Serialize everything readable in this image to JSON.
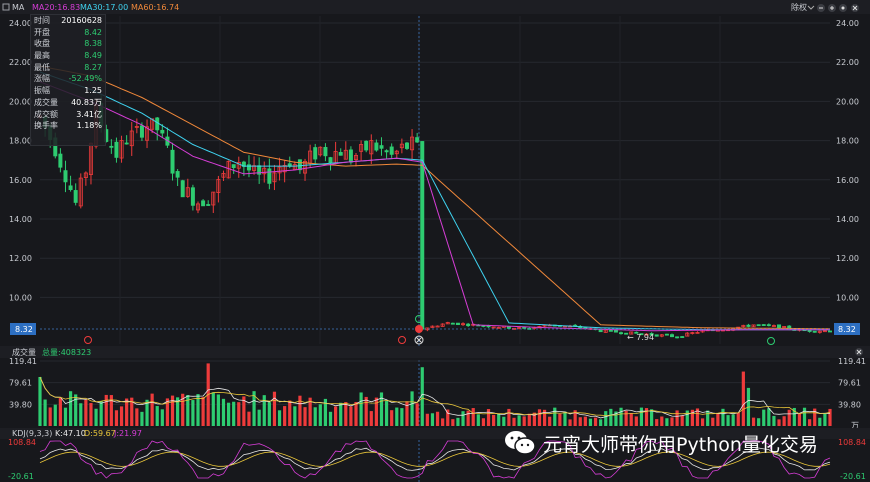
{
  "header": {
    "indicator": "MA",
    "legend": [
      {
        "label": "MA20:16.83",
        "color": "#d63dd6"
      },
      {
        "label": "MA30:17.00",
        "color": "#3fd3f0"
      },
      {
        "label": "MA60:16.74",
        "color": "#f0883a"
      }
    ],
    "adjust_label": "除权"
  },
  "price_axis": {
    "min": 8.32,
    "max": 24.0,
    "ticks": [
      "24.00",
      "22.00",
      "20.00",
      "18.00",
      "16.00",
      "14.00",
      "12.00",
      "10.00"
    ],
    "current": "8.32"
  },
  "tooltip": [
    {
      "k": "时间",
      "v": "20160628",
      "tone": "white"
    },
    {
      "k": "开盘",
      "v": "8.42",
      "tone": "green"
    },
    {
      "k": "收盘",
      "v": "8.38",
      "tone": "green"
    },
    {
      "k": "最高",
      "v": "8.49",
      "tone": "green"
    },
    {
      "k": "最低",
      "v": "8.27",
      "tone": "green"
    },
    {
      "k": "涨幅",
      "v": "-52.49%",
      "tone": "green"
    },
    {
      "k": "振幅",
      "v": "1.25",
      "tone": "white"
    },
    {
      "k": "成交量",
      "v": "40.83万",
      "tone": "white"
    },
    {
      "k": "成交额",
      "v": "3.41亿",
      "tone": "white"
    },
    {
      "k": "换手率",
      "v": "1.18%",
      "tone": "white"
    }
  ],
  "annotations": {
    "low_marker": "← 7.94"
  },
  "volume_panel": {
    "title": "成交量",
    "total_label": "总量:408323",
    "ticks": [
      "119.41",
      "79.61",
      "39.80"
    ],
    "unit": "万"
  },
  "kdj_panel": {
    "title": "KDJ(9,3,3)",
    "k": {
      "label": "K:47.10",
      "color": "#e8e8e8"
    },
    "d": {
      "label": "D:59.67",
      "color": "#e8c53a"
    },
    "j": {
      "label": "J:21.97",
      "color": "#d63dd6"
    },
    "max": "108.84",
    "min": "-20.61"
  },
  "watermark": "元宵大师带你用Python量化交易",
  "chart_data": {
    "type": "candlestick",
    "price_range": [
      8.32,
      24.0
    ],
    "series": [
      {
        "name": "MA20",
        "last": 16.83
      },
      {
        "name": "MA30",
        "last": 17.0
      },
      {
        "name": "MA60",
        "last": 16.74
      }
    ],
    "price_path": [
      [
        0,
        19.2
      ],
      [
        3,
        17.6
      ],
      [
        5,
        16.3
      ],
      [
        7,
        14.8
      ],
      [
        9,
        16.5
      ],
      [
        11,
        19.5
      ],
      [
        13,
        18.2
      ],
      [
        15,
        17.3
      ],
      [
        17,
        18.1
      ],
      [
        19,
        18.4
      ],
      [
        21,
        18.8
      ],
      [
        23,
        18.6
      ],
      [
        25,
        17.5
      ],
      [
        27,
        15.8
      ],
      [
        29,
        15.3
      ],
      [
        31,
        14.9
      ],
      [
        33,
        15.1
      ],
      [
        35,
        15.8
      ],
      [
        37,
        16.6
      ],
      [
        39,
        17.0
      ],
      [
        41,
        16.5
      ],
      [
        43,
        16.1
      ],
      [
        45,
        16.2
      ],
      [
        47,
        16.7
      ],
      [
        49,
        17.0
      ],
      [
        51,
        16.5
      ],
      [
        53,
        17.1
      ],
      [
        55,
        17.6
      ],
      [
        57,
        17.3
      ],
      [
        59,
        17.5
      ],
      [
        61,
        17.1
      ],
      [
        63,
        17.4
      ],
      [
        65,
        17.8
      ],
      [
        67,
        17.5
      ],
      [
        69,
        17.2
      ],
      [
        71,
        17.6
      ],
      [
        73,
        17.8
      ],
      [
        74,
        17.6
      ],
      [
        75,
        8.4
      ],
      [
        80,
        8.7
      ],
      [
        85,
        8.6
      ],
      [
        90,
        8.5
      ],
      [
        95,
        8.4
      ],
      [
        100,
        8.6
      ],
      [
        105,
        8.5
      ],
      [
        110,
        8.3
      ],
      [
        115,
        8.2
      ],
      [
        120,
        8.1
      ],
      [
        125,
        8.0
      ],
      [
        130,
        8.3
      ],
      [
        135,
        8.4
      ],
      [
        140,
        8.6
      ],
      [
        145,
        8.5
      ],
      [
        150,
        8.3
      ],
      [
        155,
        8.3
      ]
    ],
    "ma20_path": [
      [
        0,
        21.0
      ],
      [
        10,
        20.0
      ],
      [
        20,
        18.8
      ],
      [
        30,
        17.2
      ],
      [
        40,
        16.3
      ],
      [
        50,
        16.5
      ],
      [
        60,
        16.9
      ],
      [
        70,
        17.1
      ],
      [
        75,
        16.9
      ],
      [
        85,
        8.6
      ],
      [
        100,
        8.45
      ],
      [
        120,
        8.3
      ],
      [
        140,
        8.35
      ],
      [
        155,
        8.35
      ]
    ],
    "ma30_path": [
      [
        0,
        21.5
      ],
      [
        10,
        20.6
      ],
      [
        20,
        19.4
      ],
      [
        30,
        17.8
      ],
      [
        40,
        16.7
      ],
      [
        50,
        16.7
      ],
      [
        60,
        16.9
      ],
      [
        70,
        17.1
      ],
      [
        75,
        17.0
      ],
      [
        92,
        8.7
      ],
      [
        110,
        8.45
      ],
      [
        130,
        8.35
      ],
      [
        155,
        8.35
      ]
    ],
    "ma60_path": [
      [
        0,
        21.8
      ],
      [
        10,
        21.3
      ],
      [
        20,
        20.2
      ],
      [
        30,
        18.8
      ],
      [
        40,
        17.4
      ],
      [
        50,
        16.9
      ],
      [
        60,
        16.7
      ],
      [
        70,
        16.8
      ],
      [
        75,
        16.74
      ],
      [
        110,
        8.6
      ],
      [
        130,
        8.45
      ],
      [
        155,
        8.4
      ]
    ],
    "volume_range": [
      0,
      119.41
    ],
    "kdj_range": [
      -20.61,
      108.84
    ]
  }
}
